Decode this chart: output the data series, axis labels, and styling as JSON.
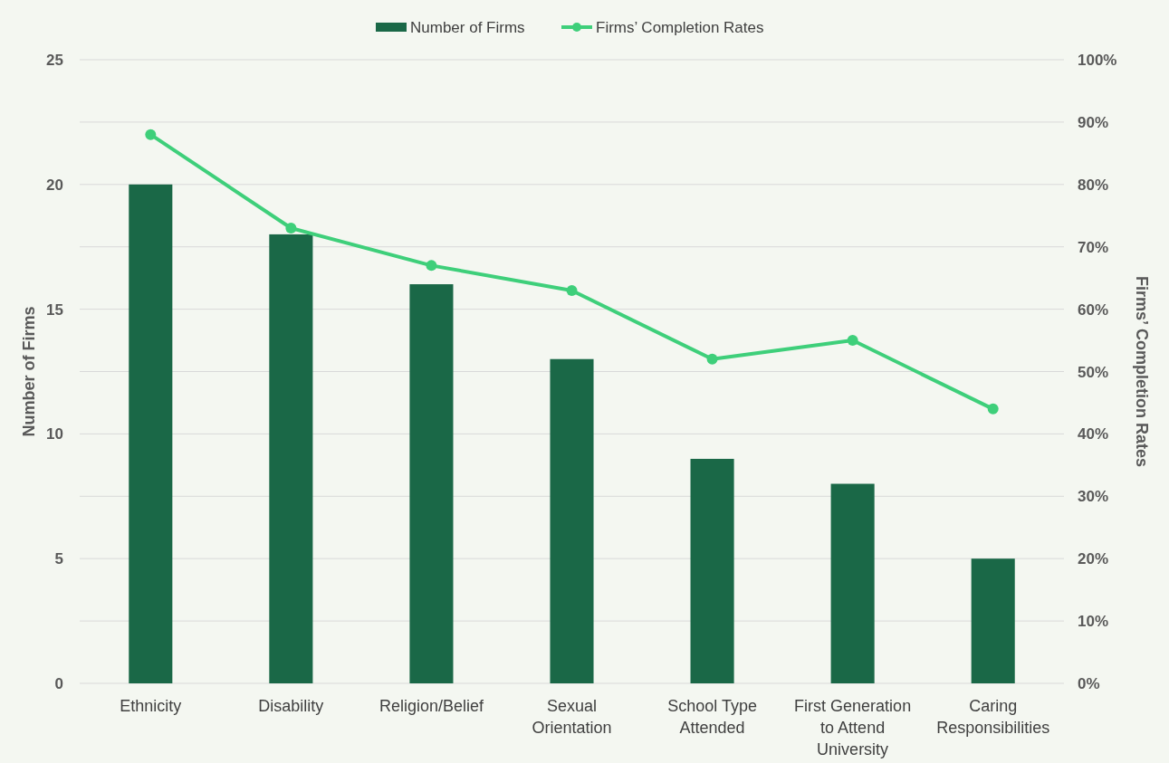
{
  "chart_data": {
    "type": "bar",
    "categories": [
      "Ethnicity",
      "Disability",
      "Religion/Belief",
      "Sexual Orientation",
      "School Type Attended",
      "First Generation to Attend University",
      "Caring Responsibilities"
    ],
    "series": [
      {
        "name": "Number of Firms",
        "color": "#1a6847",
        "values": [
          20,
          18,
          16,
          13,
          9,
          8,
          5
        ]
      },
      {
        "name": "Firms’ Completion Rates",
        "type": "line",
        "axis": "y2",
        "color": "#3ecf7a",
        "marker": "circle",
        "values": [
          88,
          73,
          67,
          63,
          52,
          55,
          44
        ]
      }
    ],
    "ylabel": "Number of Firms",
    "y2label": "Firms’ Completion Rates",
    "ylim": [
      0,
      25
    ],
    "yticks": [
      0,
      5,
      10,
      15,
      20,
      25
    ],
    "y2lim": [
      0,
      100
    ],
    "y2ticks": [
      {
        "value": 0,
        "label": "0%"
      },
      {
        "value": 10,
        "label": "10%"
      },
      {
        "value": 20,
        "label": "20%"
      },
      {
        "value": 30,
        "label": "30%"
      },
      {
        "value": 40,
        "label": "40%"
      },
      {
        "value": 50,
        "label": "50%"
      },
      {
        "value": 60,
        "label": "60%"
      },
      {
        "value": 70,
        "label": "70%"
      },
      {
        "value": 80,
        "label": "80%"
      },
      {
        "value": 90,
        "label": "90%"
      },
      {
        "value": 100,
        "label": "100%"
      }
    ],
    "grid": true,
    "legend": "top"
  }
}
